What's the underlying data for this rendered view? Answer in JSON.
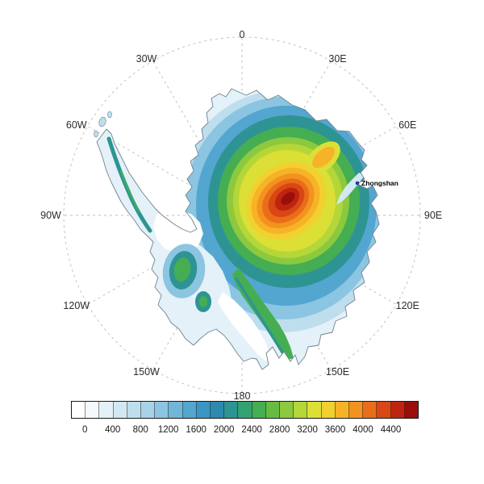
{
  "map": {
    "projection_labels": [
      "0",
      "30E",
      "60E",
      "90E",
      "120E",
      "150E",
      "180",
      "150W",
      "120W",
      "90W",
      "60W",
      "30W"
    ],
    "station": {
      "name": "Zhongshan",
      "marker_color": "#283593"
    }
  },
  "colorbar": {
    "tick_labels": [
      "0",
      "400",
      "800",
      "1200",
      "1600",
      "2000",
      "2400",
      "2800",
      "3200",
      "3600",
      "4000",
      "4400"
    ],
    "colors": [
      "#ffffff",
      "#f4fafc",
      "#e4f1f8",
      "#d2e8f3",
      "#bedeee",
      "#a7d2e8",
      "#8cc5e1",
      "#70b6d9",
      "#53a6cf",
      "#3a96c2",
      "#2d89ae",
      "#2e9493",
      "#33a272",
      "#46ae52",
      "#66bb45",
      "#8cc93e",
      "#b5d639",
      "#dcdf35",
      "#f2d02f",
      "#f6b327",
      "#f3931f",
      "#ea6d1a",
      "#d94715",
      "#bf2411",
      "#9a0e0c"
    ]
  }
}
